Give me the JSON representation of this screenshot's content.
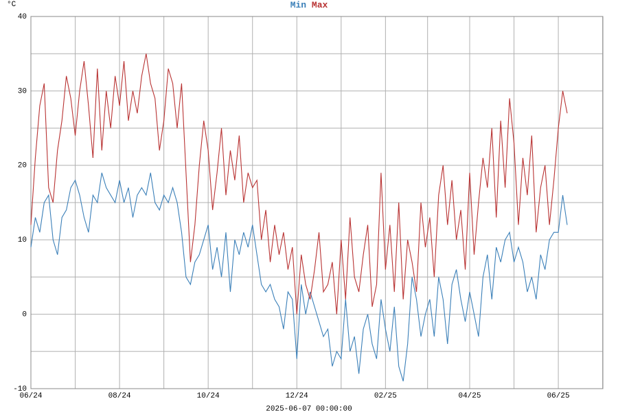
{
  "chart_data": {
    "type": "line",
    "title_parts": [
      "Min",
      "Max"
    ],
    "y_unit": "°C",
    "x_label": "2025-06-07 00:00:00",
    "categories": [
      "06/24",
      null,
      null,
      null,
      null,
      null,
      null,
      null,
      null,
      null,
      null,
      null,
      null,
      null,
      null,
      null,
      null,
      null,
      null,
      null,
      "08/24",
      null,
      null,
      null,
      null,
      null,
      null,
      null,
      null,
      null,
      null,
      null,
      null,
      null,
      null,
      null,
      null,
      null,
      null,
      null,
      "10/24",
      null,
      null,
      null,
      null,
      null,
      null,
      null,
      null,
      null,
      null,
      null,
      null,
      null,
      null,
      null,
      null,
      null,
      null,
      null,
      "12/24",
      null,
      null,
      null,
      null,
      null,
      null,
      null,
      null,
      null,
      null,
      null,
      null,
      null,
      null,
      null,
      null,
      null,
      null,
      null,
      "02/25",
      null,
      null,
      null,
      null,
      null,
      null,
      null,
      null,
      null,
      null,
      null,
      null,
      null,
      null,
      null,
      null,
      null,
      null,
      "04/25",
      null,
      null,
      null,
      null,
      null,
      null,
      null,
      null,
      null,
      null,
      null,
      null,
      null,
      null,
      null,
      null,
      null,
      null,
      null,
      "06/25",
      null,
      null
    ],
    "series": [
      {
        "name": "Min",
        "color": "#3a7fb8",
        "values": [
          9,
          13,
          11,
          15,
          16,
          10,
          8,
          13,
          14,
          17,
          18,
          16,
          13,
          11,
          16,
          15,
          19,
          17,
          16,
          15,
          18,
          15,
          17,
          13,
          16,
          17,
          16,
          19,
          15,
          14,
          16,
          15,
          17,
          15,
          11,
          5,
          4,
          7,
          8,
          10,
          12,
          6,
          9,
          5,
          11,
          3,
          10,
          8,
          11,
          9,
          12,
          8,
          4,
          3,
          4,
          2,
          1,
          -2,
          3,
          2,
          -6,
          4,
          0,
          3,
          1,
          -1,
          -3,
          -2,
          -7,
          -5,
          -6,
          2,
          -5,
          -3,
          -8,
          -2,
          0,
          -4,
          -6,
          2,
          -2,
          -5,
          1,
          -7,
          -9,
          -4,
          5,
          2,
          -3,
          0,
          2,
          -3,
          5,
          2,
          -4,
          4,
          6,
          2,
          -1,
          3,
          0,
          -3,
          5,
          8,
          2,
          9,
          7,
          10,
          11,
          7,
          9,
          7,
          3,
          5,
          2,
          8,
          6,
          10,
          11,
          11,
          16,
          12
        ]
      },
      {
        "name": "Max",
        "color": "#b83232",
        "values": [
          12,
          21,
          28,
          31,
          17,
          15,
          22,
          26,
          32,
          29,
          24,
          30,
          34,
          28,
          21,
          33,
          22,
          30,
          25,
          32,
          28,
          34,
          26,
          30,
          27,
          32,
          35,
          31,
          29,
          22,
          26,
          33,
          31,
          25,
          31,
          19,
          7,
          12,
          20,
          26,
          22,
          14,
          19,
          25,
          16,
          22,
          18,
          24,
          15,
          19,
          17,
          18,
          10,
          14,
          7,
          12,
          8,
          11,
          6,
          9,
          0,
          8,
          4,
          2,
          6,
          11,
          3,
          4,
          7,
          0,
          10,
          2,
          13,
          5,
          3,
          8,
          12,
          1,
          4,
          19,
          6,
          12,
          3,
          15,
          2,
          10,
          7,
          3,
          15,
          9,
          13,
          5,
          16,
          20,
          12,
          18,
          10,
          14,
          6,
          19,
          8,
          15,
          21,
          17,
          25,
          13,
          26,
          17,
          29,
          23,
          12,
          21,
          16,
          24,
          11,
          17,
          20,
          12,
          18,
          25,
          30,
          27
        ]
      }
    ],
    "ylim": [
      -10,
      40
    ],
    "yticks": [
      -10,
      0,
      10,
      20,
      30,
      40
    ],
    "grid": true
  }
}
